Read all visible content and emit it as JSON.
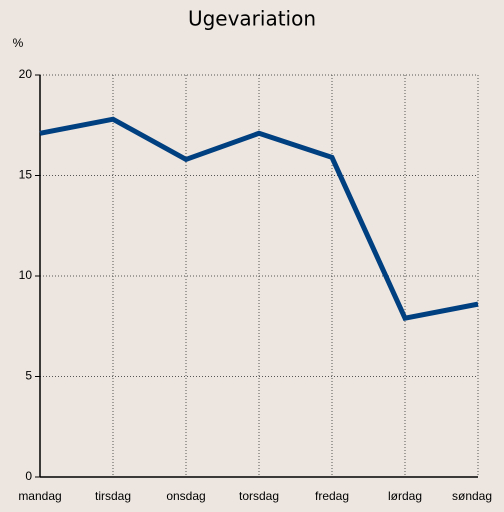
{
  "chart_data": {
    "type": "line",
    "title": "Ugevariation",
    "ylabel": "%",
    "categories": [
      "mandag",
      "tirsdag",
      "onsdag",
      "torsdag",
      "fredag",
      "lørdag",
      "søndag"
    ],
    "series": [
      {
        "name": "Ugevariation",
        "color": "#003f80",
        "values": [
          17.1,
          17.8,
          15.8,
          17.1,
          15.9,
          7.9,
          8.6
        ]
      }
    ],
    "ylim": [
      0,
      20
    ],
    "yticks": [
      0,
      5,
      10,
      15,
      20
    ],
    "grid": true
  }
}
